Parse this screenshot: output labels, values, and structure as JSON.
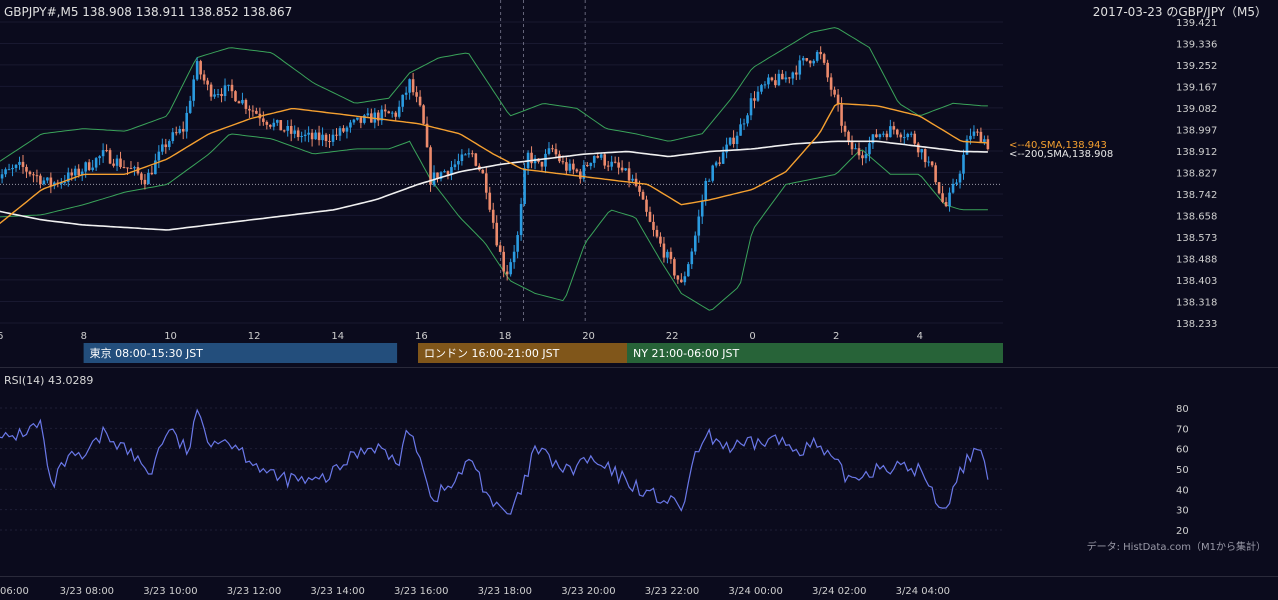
{
  "header": {
    "symbol_info": "GBPJPY#,M5 138.908 138.911 138.852 138.867",
    "title_right": "2017-03-23 のGBP/JPY（M5）"
  },
  "colors": {
    "background": "#0b0b1d",
    "bull_candle": "#2b9be0",
    "bear_candle": "#ec8a6c",
    "bollinger": "#3aa35a",
    "sma40": "#f5a030",
    "sma200": "#f0f0f0",
    "rsi": "#6a78e8",
    "tokyo": "#234e7c",
    "london": "#80561a",
    "ny": "#276338"
  },
  "price_axis": {
    "ticks": [
      "139.421",
      "139.336",
      "139.252",
      "139.167",
      "139.082",
      "138.997",
      "138.912",
      "138.827",
      "138.742",
      "138.658",
      "138.573",
      "138.488",
      "138.403",
      "138.318",
      "138.233"
    ]
  },
  "time_axis_top": {
    "ticks": [
      "6",
      "8",
      "10",
      "12",
      "14",
      "16",
      "18",
      "20",
      "22",
      "0",
      "2",
      "4"
    ]
  },
  "time_axis_bottom": {
    "ticks": [
      "06:00",
      "3/23 08:00",
      "3/23 10:00",
      "3/23 12:00",
      "3/23 14:00",
      "3/23 16:00",
      "3/23 18:00",
      "3/23 20:00",
      "3/23 22:00",
      "3/24 00:00",
      "3/24 02:00",
      "3/24 04:00"
    ]
  },
  "sessions": [
    {
      "label": "東京 08:00-15:30 JST",
      "color": "#234e7c"
    },
    {
      "label": "ロンドン 16:00-21:00 JST",
      "color": "#80561a"
    },
    {
      "label": "NY 21:00-06:00 JST",
      "color": "#276338"
    }
  ],
  "indicator_labels": {
    "sma40": "<--40,SMA,138.943",
    "sma200": "<--200,SMA,138.908"
  },
  "rsi": {
    "label": "RSI(14) 43.0289",
    "ticks": [
      "80",
      "70",
      "60",
      "50",
      "40",
      "30",
      "20"
    ]
  },
  "source": "データ: HistData.com（M1から集計）",
  "chart_data": {
    "type": "candlestick",
    "title": "2017-03-23 のGBP/JPY（M5）",
    "symbol": "GBPJPY#,M5",
    "last_ohlc": {
      "open": 138.908,
      "high": 138.911,
      "low": 138.852,
      "close": 138.867
    },
    "ylim": [
      138.233,
      139.421
    ],
    "x_hours": [
      5.8,
      5.5
    ],
    "price_keypoints": [
      [
        5.8,
        138.8
      ],
      [
        6.5,
        138.85
      ],
      [
        7.2,
        138.78
      ],
      [
        7.8,
        138.82
      ],
      [
        8.5,
        138.9
      ],
      [
        9.0,
        138.85
      ],
      [
        9.5,
        138.8
      ],
      [
        10.0,
        138.95
      ],
      [
        10.4,
        139.0
      ],
      [
        10.7,
        139.25
      ],
      [
        11.0,
        139.15
      ],
      [
        11.5,
        139.15
      ],
      [
        12.0,
        139.08
      ],
      [
        12.5,
        139.02
      ],
      [
        13.0,
        138.98
      ],
      [
        13.5,
        138.96
      ],
      [
        14.0,
        138.97
      ],
      [
        14.5,
        139.02
      ],
      [
        15.0,
        139.05
      ],
      [
        15.5,
        139.06
      ],
      [
        15.8,
        139.18
      ],
      [
        16.1,
        139.05
      ],
      [
        16.3,
        138.8
      ],
      [
        16.8,
        138.85
      ],
      [
        17.3,
        138.9
      ],
      [
        17.6,
        138.8
      ],
      [
        17.9,
        138.55
      ],
      [
        18.1,
        138.42
      ],
      [
        18.4,
        138.58
      ],
      [
        18.6,
        138.9
      ],
      [
        18.9,
        138.85
      ],
      [
        19.2,
        138.92
      ],
      [
        19.5,
        138.85
      ],
      [
        19.9,
        138.82
      ],
      [
        20.2,
        138.9
      ],
      [
        20.5,
        138.87
      ],
      [
        20.9,
        138.83
      ],
      [
        21.2,
        138.78
      ],
      [
        21.6,
        138.6
      ],
      [
        22.0,
        138.48
      ],
      [
        22.3,
        138.38
      ],
      [
        22.6,
        138.55
      ],
      [
        22.9,
        138.8
      ],
      [
        23.3,
        138.9
      ],
      [
        23.7,
        139.0
      ],
      [
        24.0,
        139.12
      ],
      [
        24.4,
        139.18
      ],
      [
        24.8,
        139.2
      ],
      [
        25.2,
        139.26
      ],
      [
        25.6,
        139.3
      ],
      [
        26.0,
        139.1
      ],
      [
        26.3,
        138.93
      ],
      [
        26.6,
        138.9
      ],
      [
        27.0,
        138.98
      ],
      [
        27.4,
        139.0
      ],
      [
        27.8,
        138.97
      ],
      [
        28.1,
        138.9
      ],
      [
        28.4,
        138.8
      ],
      [
        28.6,
        138.68
      ],
      [
        28.9,
        138.8
      ],
      [
        29.2,
        138.98
      ],
      [
        29.5,
        138.97
      ],
      [
        29.7,
        138.92
      ]
    ],
    "sma40_keypoints": [
      [
        5.8,
        138.6
      ],
      [
        7.0,
        138.76
      ],
      [
        8.0,
        138.82
      ],
      [
        9.0,
        138.82
      ],
      [
        10.0,
        138.88
      ],
      [
        11.0,
        138.98
      ],
      [
        12.0,
        139.04
      ],
      [
        13.0,
        139.08
      ],
      [
        14.0,
        139.06
      ],
      [
        15.0,
        139.04
      ],
      [
        16.0,
        139.02
      ],
      [
        17.0,
        138.98
      ],
      [
        17.8,
        138.9
      ],
      [
        18.5,
        138.84
      ],
      [
        19.5,
        138.82
      ],
      [
        20.5,
        138.8
      ],
      [
        21.5,
        138.78
      ],
      [
        22.3,
        138.7
      ],
      [
        23.0,
        138.72
      ],
      [
        24.0,
        138.76
      ],
      [
        24.8,
        138.83
      ],
      [
        25.6,
        138.98
      ],
      [
        26.0,
        139.1
      ],
      [
        27.0,
        139.09
      ],
      [
        28.0,
        139.05
      ],
      [
        29.0,
        138.95
      ],
      [
        29.7,
        138.943
      ]
    ],
    "sma200_keypoints": [
      [
        5.8,
        138.68
      ],
      [
        7.0,
        138.64
      ],
      [
        8.0,
        138.62
      ],
      [
        9.0,
        138.61
      ],
      [
        10.0,
        138.6
      ],
      [
        11.0,
        138.62
      ],
      [
        12.0,
        138.64
      ],
      [
        13.0,
        138.66
      ],
      [
        14.0,
        138.68
      ],
      [
        15.0,
        138.72
      ],
      [
        16.0,
        138.78
      ],
      [
        17.0,
        138.83
      ],
      [
        18.0,
        138.86
      ],
      [
        19.0,
        138.88
      ],
      [
        20.0,
        138.9
      ],
      [
        21.0,
        138.91
      ],
      [
        22.0,
        138.89
      ],
      [
        23.0,
        138.91
      ],
      [
        24.0,
        138.92
      ],
      [
        25.0,
        138.94
      ],
      [
        26.0,
        138.95
      ],
      [
        27.0,
        138.95
      ],
      [
        28.0,
        138.93
      ],
      [
        29.0,
        138.91
      ],
      [
        29.7,
        138.908
      ]
    ],
    "bb_upper_keypoints": [
      [
        5.8,
        138.85
      ],
      [
        7.0,
        138.98
      ],
      [
        8.0,
        139.0
      ],
      [
        9.0,
        138.99
      ],
      [
        10.0,
        139.05
      ],
      [
        10.7,
        139.28
      ],
      [
        11.5,
        139.32
      ],
      [
        12.5,
        139.3
      ],
      [
        13.5,
        139.18
      ],
      [
        14.5,
        139.1
      ],
      [
        15.3,
        139.12
      ],
      [
        15.8,
        139.22
      ],
      [
        16.5,
        139.28
      ],
      [
        17.2,
        139.3
      ],
      [
        17.6,
        139.2
      ],
      [
        18.2,
        139.05
      ],
      [
        19.0,
        139.1
      ],
      [
        19.8,
        139.08
      ],
      [
        20.5,
        139.0
      ],
      [
        21.2,
        138.98
      ],
      [
        22.0,
        138.95
      ],
      [
        22.8,
        138.98
      ],
      [
        23.5,
        139.12
      ],
      [
        24.0,
        139.24
      ],
      [
        24.8,
        139.32
      ],
      [
        25.4,
        139.38
      ],
      [
        26.0,
        139.4
      ],
      [
        26.8,
        139.32
      ],
      [
        27.5,
        139.1
      ],
      [
        28.0,
        139.05
      ],
      [
        28.8,
        139.1
      ],
      [
        29.5,
        139.09
      ],
      [
        29.7,
        139.09
      ]
    ],
    "bb_lower_keypoints": [
      [
        5.8,
        138.65
      ],
      [
        7.0,
        138.66
      ],
      [
        8.0,
        138.7
      ],
      [
        9.0,
        138.75
      ],
      [
        10.0,
        138.78
      ],
      [
        11.0,
        138.9
      ],
      [
        11.5,
        138.98
      ],
      [
        12.5,
        138.96
      ],
      [
        13.5,
        138.9
      ],
      [
        14.5,
        138.92
      ],
      [
        15.3,
        138.92
      ],
      [
        15.8,
        138.95
      ],
      [
        16.3,
        138.8
      ],
      [
        17.0,
        138.65
      ],
      [
        17.6,
        138.55
      ],
      [
        18.2,
        138.4
      ],
      [
        18.8,
        138.35
      ],
      [
        19.5,
        138.32
      ],
      [
        20.0,
        138.55
      ],
      [
        20.6,
        138.68
      ],
      [
        21.2,
        138.65
      ],
      [
        21.8,
        138.48
      ],
      [
        22.3,
        138.35
      ],
      [
        23.0,
        138.28
      ],
      [
        23.7,
        138.38
      ],
      [
        24.0,
        138.6
      ],
      [
        24.8,
        138.78
      ],
      [
        25.4,
        138.8
      ],
      [
        26.0,
        138.82
      ],
      [
        26.6,
        138.92
      ],
      [
        27.3,
        138.82
      ],
      [
        28.0,
        138.82
      ],
      [
        28.6,
        138.7
      ],
      [
        29.0,
        138.68
      ],
      [
        29.7,
        138.68
      ]
    ],
    "rsi_keypoints": [
      [
        5.8,
        62
      ],
      [
        6.3,
        66
      ],
      [
        7.0,
        72
      ],
      [
        7.2,
        40
      ],
      [
        7.6,
        55
      ],
      [
        8.0,
        55
      ],
      [
        8.5,
        68
      ],
      [
        9.0,
        60
      ],
      [
        9.6,
        48
      ],
      [
        10.0,
        70
      ],
      [
        10.5,
        58
      ],
      [
        10.7,
        78
      ],
      [
        11.0,
        65
      ],
      [
        11.5,
        64
      ],
      [
        12.0,
        55
      ],
      [
        12.5,
        46
      ],
      [
        13.0,
        45
      ],
      [
        13.5,
        43
      ],
      [
        14.0,
        48
      ],
      [
        14.5,
        58
      ],
      [
        15.0,
        62
      ],
      [
        15.5,
        52
      ],
      [
        15.8,
        70
      ],
      [
        16.1,
        55
      ],
      [
        16.3,
        35
      ],
      [
        16.8,
        42
      ],
      [
        17.3,
        55
      ],
      [
        17.6,
        40
      ],
      [
        17.9,
        30
      ],
      [
        18.2,
        27
      ],
      [
        18.5,
        40
      ],
      [
        18.8,
        60
      ],
      [
        19.2,
        54
      ],
      [
        19.6,
        48
      ],
      [
        20.0,
        55
      ],
      [
        20.5,
        50
      ],
      [
        21.0,
        44
      ],
      [
        21.5,
        38
      ],
      [
        22.0,
        34
      ],
      [
        22.3,
        30
      ],
      [
        22.7,
        60
      ],
      [
        23.0,
        66
      ],
      [
        23.5,
        60
      ],
      [
        24.0,
        62
      ],
      [
        24.5,
        65
      ],
      [
        25.0,
        60
      ],
      [
        25.5,
        62
      ],
      [
        26.0,
        52
      ],
      [
        26.3,
        45
      ],
      [
        26.7,
        48
      ],
      [
        27.1,
        52
      ],
      [
        27.6,
        50
      ],
      [
        28.0,
        50
      ],
      [
        28.3,
        38
      ],
      [
        28.6,
        30
      ],
      [
        28.9,
        45
      ],
      [
        29.2,
        58
      ],
      [
        29.5,
        55
      ],
      [
        29.7,
        43
      ]
    ]
  }
}
